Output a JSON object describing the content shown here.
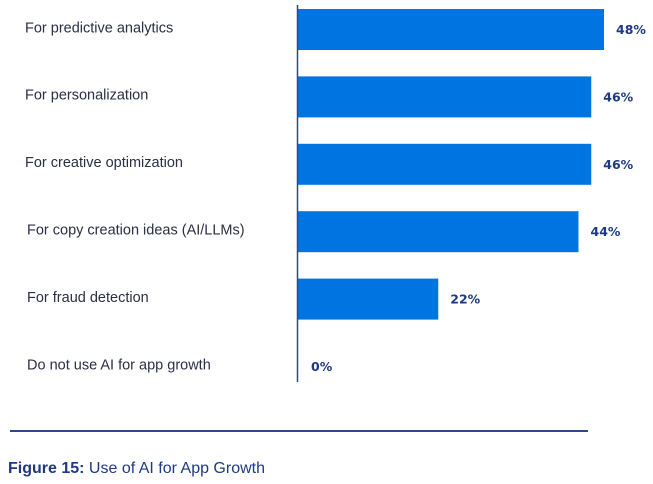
{
  "chart_data": {
    "type": "bar",
    "orientation": "horizontal",
    "title": "",
    "xlabel": "",
    "ylabel": "",
    "categories": [
      "For predictive analytics",
      "For personalization",
      "For creative optimization",
      "For copy creation ideas (AI/LLMs)",
      "For fraud detection",
      "Do not use AI for app growth"
    ],
    "values": [
      48,
      46,
      46,
      44,
      22,
      0
    ],
    "value_labels": [
      "48%",
      "46%",
      "46%",
      "44%",
      "22%",
      "0%"
    ],
    "unit": "%",
    "xlim": [
      0,
      48
    ],
    "grid": false,
    "legend": "none",
    "colors": {
      "bar": "#0074E0",
      "value_text": "#1E3A82",
      "axis": "#2C4A8A"
    }
  },
  "caption": {
    "figure_label": "Figure 15:",
    "text": " Use of AI for App Growth"
  }
}
